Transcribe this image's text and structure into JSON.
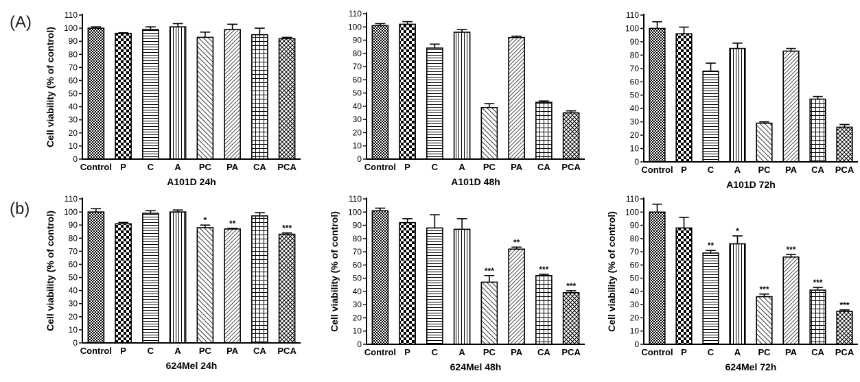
{
  "panel_labels": {
    "a": "(A)",
    "b": "(b)"
  },
  "colors": {
    "bar_outline": "#000000",
    "pattern_ink": "#000000",
    "background": "#ffffff"
  },
  "chart_data": [
    {
      "type": "bar",
      "title": "A101D 24h",
      "ylabel": "Cell viability (% of control)",
      "categories": [
        "Control",
        "P",
        "C",
        "A",
        "PC",
        "PA",
        "CA",
        "PCA"
      ],
      "values": [
        100,
        96,
        99,
        101,
        93,
        99,
        95,
        92
      ],
      "errors": [
        1,
        0.5,
        2,
        2.5,
        4,
        4,
        5,
        1
      ],
      "significance": [
        "",
        "",
        "",
        "",
        "",
        "",
        "",
        ""
      ],
      "ylim": [
        0,
        110
      ],
      "yticks": [
        0,
        10,
        20,
        30,
        40,
        50,
        60,
        70,
        80,
        90,
        100,
        110
      ]
    },
    {
      "type": "bar",
      "title": "A101D 48h",
      "ylabel": "",
      "categories": [
        "Control",
        "P",
        "C",
        "A",
        "PC",
        "PA",
        "CA",
        "PCA"
      ],
      "values": [
        101,
        102,
        84,
        96,
        39,
        92,
        43,
        35
      ],
      "errors": [
        1.5,
        2,
        3,
        2,
        3,
        1,
        1,
        1.5
      ],
      "significance": [
        "",
        "",
        "",
        "",
        "",
        "",
        "",
        ""
      ],
      "ylim": [
        0,
        110
      ],
      "yticks": [
        0,
        10,
        20,
        30,
        40,
        50,
        60,
        70,
        80,
        90,
        100,
        110
      ]
    },
    {
      "type": "bar",
      "title": "A101D 72h",
      "ylabel": "",
      "categories": [
        "Control",
        "P",
        "C",
        "A",
        "PC",
        "PA",
        "CA",
        "PCA"
      ],
      "values": [
        100,
        96,
        68,
        85,
        29,
        83,
        47,
        26
      ],
      "errors": [
        5,
        5,
        6,
        4,
        1,
        2,
        2,
        2
      ],
      "significance": [
        "",
        "",
        "",
        "",
        "",
        "",
        "",
        ""
      ],
      "ylim": [
        0,
        110
      ],
      "yticks": [
        0,
        10,
        20,
        30,
        40,
        50,
        60,
        70,
        80,
        90,
        100,
        110
      ]
    },
    {
      "type": "bar",
      "title": "624Mel 24h",
      "ylabel": "Cell viability (% of control)",
      "categories": [
        "Control",
        "P",
        "C",
        "A",
        "PC",
        "PA",
        "CA",
        "PCA"
      ],
      "values": [
        100,
        91,
        99,
        100,
        88,
        87,
        97,
        83
      ],
      "errors": [
        2.5,
        1,
        2,
        1.5,
        2,
        0.5,
        2.5,
        1
      ],
      "significance": [
        "",
        "",
        "",
        "",
        "*",
        "**",
        "",
        "***"
      ],
      "ylim": [
        0,
        110
      ],
      "yticks": [
        0,
        10,
        20,
        30,
        40,
        50,
        60,
        70,
        80,
        90,
        100,
        110
      ]
    },
    {
      "type": "bar",
      "title": "624Mel 48h",
      "ylabel": "Cell viability (% of control)",
      "categories": [
        "Control",
        "P",
        "C",
        "A",
        "PC",
        "PA",
        "CA",
        "PCA"
      ],
      "values": [
        101,
        92,
        88,
        87,
        47,
        72,
        52,
        39
      ],
      "errors": [
        2,
        3,
        10,
        8,
        5,
        1.5,
        1,
        1.5
      ],
      "significance": [
        "",
        "",
        "",
        "",
        "***",
        "**",
        "***",
        "***"
      ],
      "ylim": [
        0,
        110
      ],
      "yticks": [
        0,
        10,
        20,
        30,
        40,
        50,
        60,
        70,
        80,
        90,
        100,
        110
      ]
    },
    {
      "type": "bar",
      "title": "624Mel 72h",
      "ylabel": "Cell viability (% of control)",
      "categories": [
        "Control",
        "P",
        "C",
        "A",
        "PC",
        "PA",
        "CA",
        "PCA"
      ],
      "values": [
        100,
        88,
        69,
        76,
        36,
        66,
        41,
        25
      ],
      "errors": [
        6,
        8,
        2,
        6,
        2,
        2,
        2,
        1
      ],
      "significance": [
        "",
        "",
        "**",
        "*",
        "***",
        "***",
        "***",
        "***"
      ],
      "ylim": [
        0,
        110
      ],
      "yticks": [
        0,
        10,
        20,
        30,
        40,
        50,
        60,
        70,
        80,
        90,
        100,
        110
      ]
    }
  ]
}
